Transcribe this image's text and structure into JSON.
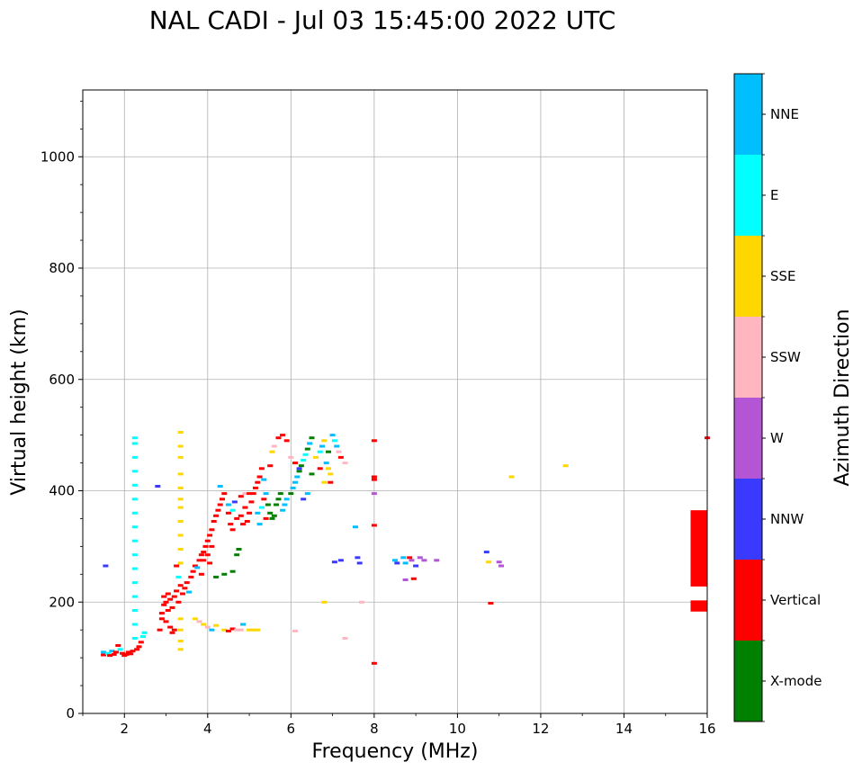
{
  "chart_data": {
    "type": "scatter",
    "title": "NAL CADI - Jul 03 15:45:00 2022 UTC",
    "xlabel": "Frequency (MHz)",
    "ylabel": "Virtual height (km)",
    "colorbar_label": "Azimuth Direction",
    "xlim": [
      1,
      16
    ],
    "ylim": [
      0,
      1120
    ],
    "grid": true,
    "x_ticks": [
      2,
      4,
      6,
      8,
      10,
      12,
      14,
      16
    ],
    "y_ticks": [
      0,
      200,
      400,
      600,
      800,
      1000
    ],
    "x_tick_labels": [
      "2",
      "4",
      "6",
      "8",
      "10",
      "12",
      "14",
      "16"
    ],
    "y_tick_labels": [
      "0",
      "200",
      "400",
      "600",
      "800",
      "1000"
    ],
    "categories": [
      {
        "name": "X-mode",
        "color": "#008000"
      },
      {
        "name": "Vertical",
        "color": "#ff0000"
      },
      {
        "name": "NNW",
        "color": "#3a3aff"
      },
      {
        "name": "W",
        "color": "#b455d6"
      },
      {
        "name": "SSW",
        "color": "#ffb6c1"
      },
      {
        "name": "SSE",
        "color": "#ffd700"
      },
      {
        "name": "E",
        "color": "#00ffff"
      },
      {
        "name": "NNE",
        "color": "#00bfff"
      }
    ],
    "points": [
      [
        1.5,
        105,
        "Vertical"
      ],
      [
        1.5,
        110,
        "NNE"
      ],
      [
        1.55,
        265,
        "NNW"
      ],
      [
        1.6,
        108,
        "E"
      ],
      [
        1.65,
        104,
        "Vertical"
      ],
      [
        1.7,
        112,
        "NNE"
      ],
      [
        1.75,
        106,
        "Vertical"
      ],
      [
        1.8,
        110,
        "Vertical"
      ],
      [
        1.85,
        122,
        "Vertical"
      ],
      [
        1.9,
        115,
        "E"
      ],
      [
        1.95,
        108,
        "Vertical"
      ],
      [
        2.0,
        104,
        "Vertical"
      ],
      [
        2.05,
        106,
        "Vertical"
      ],
      [
        2.1,
        110,
        "Vertical"
      ],
      [
        2.15,
        107,
        "Vertical"
      ],
      [
        2.2,
        112,
        "Vertical"
      ],
      [
        2.3,
        115,
        "Vertical"
      ],
      [
        2.35,
        120,
        "Vertical"
      ],
      [
        2.4,
        128,
        "Vertical"
      ],
      [
        2.45,
        138,
        "E"
      ],
      [
        2.48,
        145,
        "E"
      ],
      [
        2.25,
        135,
        "E"
      ],
      [
        2.25,
        160,
        "E"
      ],
      [
        2.25,
        185,
        "E"
      ],
      [
        2.25,
        210,
        "E"
      ],
      [
        2.25,
        235,
        "E"
      ],
      [
        2.25,
        260,
        "E"
      ],
      [
        2.25,
        285,
        "E"
      ],
      [
        2.25,
        310,
        "E"
      ],
      [
        2.25,
        335,
        "E"
      ],
      [
        2.25,
        360,
        "E"
      ],
      [
        2.25,
        385,
        "E"
      ],
      [
        2.25,
        410,
        "E"
      ],
      [
        2.25,
        435,
        "E"
      ],
      [
        2.25,
        460,
        "E"
      ],
      [
        2.25,
        485,
        "E"
      ],
      [
        2.25,
        495,
        "E"
      ],
      [
        2.8,
        408,
        "NNW"
      ],
      [
        2.85,
        150,
        "Vertical"
      ],
      [
        2.9,
        170,
        "Vertical"
      ],
      [
        2.9,
        180,
        "Vertical"
      ],
      [
        2.95,
        195,
        "Vertical"
      ],
      [
        2.95,
        210,
        "Vertical"
      ],
      [
        3.0,
        165,
        "Vertical"
      ],
      [
        3.0,
        200,
        "Vertical"
      ],
      [
        3.05,
        185,
        "Vertical"
      ],
      [
        3.05,
        215,
        "Vertical"
      ],
      [
        3.1,
        155,
        "Vertical"
      ],
      [
        3.1,
        205,
        "Vertical"
      ],
      [
        3.15,
        145,
        "Vertical"
      ],
      [
        3.15,
        190,
        "Vertical"
      ],
      [
        3.2,
        150,
        "Vertical"
      ],
      [
        3.2,
        210,
        "Vertical"
      ],
      [
        3.25,
        265,
        "Vertical"
      ],
      [
        3.25,
        220,
        "Vertical"
      ],
      [
        3.3,
        200,
        "Vertical"
      ],
      [
        3.3,
        245,
        "E"
      ],
      [
        3.35,
        230,
        "Vertical"
      ],
      [
        3.4,
        215,
        "Vertical"
      ],
      [
        3.45,
        225,
        "Vertical"
      ],
      [
        3.5,
        235,
        "Vertical"
      ],
      [
        3.55,
        218,
        "NNE"
      ],
      [
        3.35,
        115,
        "SSE"
      ],
      [
        3.35,
        130,
        "SSE"
      ],
      [
        3.35,
        150,
        "SSE"
      ],
      [
        3.35,
        170,
        "SSE"
      ],
      [
        3.35,
        270,
        "SSE"
      ],
      [
        3.35,
        295,
        "SSE"
      ],
      [
        3.35,
        320,
        "SSE"
      ],
      [
        3.35,
        345,
        "SSE"
      ],
      [
        3.35,
        370,
        "SSE"
      ],
      [
        3.35,
        385,
        "SSE"
      ],
      [
        3.35,
        405,
        "SSE"
      ],
      [
        3.35,
        430,
        "SSE"
      ],
      [
        3.35,
        460,
        "SSE"
      ],
      [
        3.35,
        480,
        "SSE"
      ],
      [
        3.35,
        505,
        "SSE"
      ],
      [
        3.6,
        245,
        "Vertical"
      ],
      [
        3.65,
        255,
        "Vertical"
      ],
      [
        3.7,
        265,
        "Vertical"
      ],
      [
        3.75,
        262,
        "NNE"
      ],
      [
        3.8,
        275,
        "Vertical"
      ],
      [
        3.85,
        285,
        "Vertical"
      ],
      [
        3.9,
        290,
        "Vertical"
      ],
      [
        3.95,
        300,
        "Vertical"
      ],
      [
        4.0,
        310,
        "Vertical"
      ],
      [
        4.05,
        320,
        "Vertical"
      ],
      [
        4.1,
        330,
        "Vertical"
      ],
      [
        4.15,
        345,
        "Vertical"
      ],
      [
        4.2,
        355,
        "Vertical"
      ],
      [
        4.25,
        365,
        "Vertical"
      ],
      [
        4.3,
        375,
        "Vertical"
      ],
      [
        4.35,
        385,
        "Vertical"
      ],
      [
        4.4,
        395,
        "Vertical"
      ],
      [
        4.0,
        285,
        "Vertical"
      ],
      [
        4.05,
        270,
        "Vertical"
      ],
      [
        4.1,
        300,
        "Vertical"
      ],
      [
        3.85,
        250,
        "Vertical"
      ],
      [
        3.9,
        275,
        "Vertical"
      ],
      [
        4.2,
        245,
        "X-mode"
      ],
      [
        4.4,
        250,
        "X-mode"
      ],
      [
        4.6,
        255,
        "X-mode"
      ],
      [
        4.7,
        285,
        "X-mode"
      ],
      [
        4.75,
        295,
        "X-mode"
      ],
      [
        4.3,
        408,
        "NNE"
      ],
      [
        4.5,
        360,
        "Vertical"
      ],
      [
        4.55,
        340,
        "Vertical"
      ],
      [
        4.6,
        330,
        "Vertical"
      ],
      [
        4.7,
        350,
        "Vertical"
      ],
      [
        4.8,
        355,
        "Vertical"
      ],
      [
        4.85,
        340,
        "Vertical"
      ],
      [
        4.9,
        370,
        "Vertical"
      ],
      [
        4.95,
        345,
        "Vertical"
      ],
      [
        5.0,
        360,
        "Vertical"
      ],
      [
        5.05,
        380,
        "Vertical"
      ],
      [
        5.1,
        395,
        "Vertical"
      ],
      [
        5.15,
        405,
        "Vertical"
      ],
      [
        4.5,
        375,
        "NNE"
      ],
      [
        4.6,
        365,
        "E"
      ],
      [
        4.65,
        380,
        "NNW"
      ],
      [
        4.8,
        390,
        "Vertical"
      ],
      [
        4.9,
        395,
        "SSW"
      ],
      [
        5.0,
        395,
        "Vertical"
      ],
      [
        5.2,
        415,
        "Vertical"
      ],
      [
        5.25,
        425,
        "Vertical"
      ],
      [
        5.3,
        440,
        "Vertical"
      ],
      [
        5.35,
        420,
        "NNE"
      ],
      [
        5.4,
        395,
        "NNE"
      ],
      [
        5.45,
        375,
        "X-mode"
      ],
      [
        5.5,
        360,
        "X-mode"
      ],
      [
        5.55,
        350,
        "X-mode"
      ],
      [
        5.6,
        355,
        "X-mode"
      ],
      [
        5.65,
        375,
        "X-mode"
      ],
      [
        5.7,
        385,
        "X-mode"
      ],
      [
        5.75,
        395,
        "X-mode"
      ],
      [
        5.8,
        365,
        "NNE"
      ],
      [
        5.85,
        375,
        "NNE"
      ],
      [
        5.9,
        385,
        "NNE"
      ],
      [
        5.2,
        360,
        "NNE"
      ],
      [
        5.25,
        340,
        "NNE"
      ],
      [
        5.3,
        370,
        "E"
      ],
      [
        5.35,
        385,
        "Vertical"
      ],
      [
        5.4,
        350,
        "Vertical"
      ],
      [
        5.5,
        445,
        "Vertical"
      ],
      [
        5.55,
        470,
        "SSE"
      ],
      [
        5.6,
        480,
        "SSW"
      ],
      [
        5.7,
        495,
        "Vertical"
      ],
      [
        5.8,
        500,
        "Vertical"
      ],
      [
        5.9,
        490,
        "Vertical"
      ],
      [
        6.0,
        395,
        "X-mode"
      ],
      [
        6.05,
        405,
        "NNE"
      ],
      [
        6.1,
        415,
        "NNE"
      ],
      [
        6.15,
        425,
        "NNE"
      ],
      [
        6.2,
        435,
        "X-mode"
      ],
      [
        6.25,
        445,
        "X-mode"
      ],
      [
        6.3,
        455,
        "E"
      ],
      [
        6.35,
        465,
        "E"
      ],
      [
        6.4,
        475,
        "X-mode"
      ],
      [
        6.45,
        485,
        "NNE"
      ],
      [
        6.5,
        495,
        "X-mode"
      ],
      [
        6.0,
        460,
        "SSW"
      ],
      [
        6.1,
        450,
        "Vertical"
      ],
      [
        6.2,
        440,
        "NNW"
      ],
      [
        6.3,
        385,
        "NNW"
      ],
      [
        6.4,
        395,
        "NNE"
      ],
      [
        6.5,
        430,
        "X-mode"
      ],
      [
        6.6,
        460,
        "SSE"
      ],
      [
        6.7,
        470,
        "E"
      ],
      [
        6.75,
        480,
        "NNE"
      ],
      [
        6.8,
        490,
        "SSE"
      ],
      [
        6.85,
        450,
        "NNE"
      ],
      [
        6.9,
        440,
        "SSE"
      ],
      [
        6.95,
        430,
        "SSE"
      ],
      [
        7.0,
        500,
        "NNE"
      ],
      [
        7.05,
        490,
        "E"
      ],
      [
        7.1,
        480,
        "NNE"
      ],
      [
        7.15,
        470,
        "SSW"
      ],
      [
        7.2,
        460,
        "Vertical"
      ],
      [
        7.3,
        450,
        "SSW"
      ],
      [
        6.9,
        470,
        "X-mode"
      ],
      [
        6.7,
        440,
        "Vertical"
      ],
      [
        6.8,
        415,
        "SSE"
      ],
      [
        6.95,
        415,
        "Vertical"
      ],
      [
        3.7,
        170,
        "SSE"
      ],
      [
        3.8,
        165,
        "SSW"
      ],
      [
        3.9,
        160,
        "SSE"
      ],
      [
        4.0,
        155,
        "SSW"
      ],
      [
        4.1,
        150,
        "NNE"
      ],
      [
        4.2,
        158,
        "SSE"
      ],
      [
        4.4,
        150,
        "SSE"
      ],
      [
        4.5,
        148,
        "Vertical"
      ],
      [
        4.6,
        152,
        "Vertical"
      ],
      [
        4.7,
        150,
        "SSW"
      ],
      [
        4.8,
        150,
        "SSW"
      ],
      [
        4.85,
        160,
        "NNE"
      ],
      [
        5.0,
        150,
        "SSE"
      ],
      [
        5.1,
        150,
        "SSE"
      ],
      [
        5.2,
        150,
        "SSE"
      ],
      [
        6.1,
        148,
        "SSW"
      ],
      [
        6.8,
        200,
        "SSE"
      ],
      [
        7.3,
        135,
        "SSW"
      ],
      [
        7.7,
        200,
        "SSW"
      ],
      [
        7.55,
        335,
        "NNE"
      ],
      [
        7.6,
        280,
        "NNW"
      ],
      [
        7.65,
        270,
        "NNW"
      ],
      [
        7.2,
        275,
        "NNW"
      ],
      [
        7.05,
        272,
        "NNW"
      ],
      [
        8.0,
        90,
        "Vertical"
      ],
      [
        8.0,
        338,
        "Vertical"
      ],
      [
        8.0,
        395,
        "W"
      ],
      [
        8.0,
        420,
        "Vertical"
      ],
      [
        8.0,
        425,
        "Vertical"
      ],
      [
        8.0,
        490,
        "Vertical"
      ],
      [
        8.5,
        275,
        "NNE"
      ],
      [
        8.55,
        270,
        "NNW"
      ],
      [
        8.7,
        280,
        "NNE"
      ],
      [
        8.75,
        270,
        "NNE"
      ],
      [
        8.85,
        280,
        "Vertical"
      ],
      [
        8.9,
        275,
        "W"
      ],
      [
        9.0,
        265,
        "NNW"
      ],
      [
        9.1,
        280,
        "W"
      ],
      [
        9.2,
        275,
        "W"
      ],
      [
        8.75,
        240,
        "W"
      ],
      [
        8.95,
        242,
        "Vertical"
      ],
      [
        9.5,
        275,
        "W"
      ],
      [
        10.7,
        290,
        "NNW"
      ],
      [
        10.75,
        272,
        "SSE"
      ],
      [
        10.8,
        198,
        "Vertical"
      ],
      [
        11.0,
        272,
        "W"
      ],
      [
        11.05,
        265,
        "W"
      ],
      [
        11.3,
        425,
        "SSE"
      ],
      [
        12.6,
        445,
        "SSE"
      ],
      [
        16.0,
        495,
        "Vertical"
      ]
    ],
    "vertical_bars": [
      {
        "x": [
          15.6,
          16.0
        ],
        "y": [
          228,
          365
        ],
        "category": "Vertical"
      },
      {
        "x": [
          15.6,
          16.0
        ],
        "y": [
          183,
          203
        ],
        "category": "Vertical"
      }
    ]
  }
}
